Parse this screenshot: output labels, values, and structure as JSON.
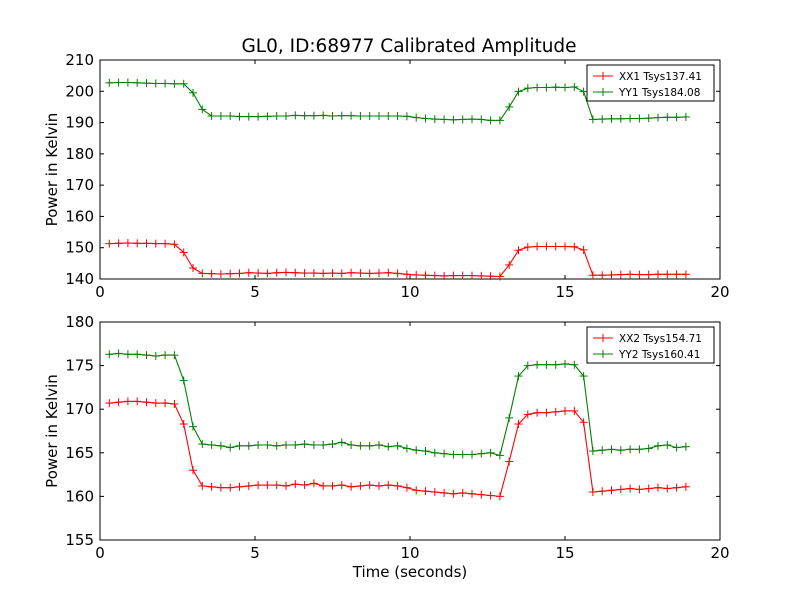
{
  "title": "GL0, ID:68977 Calibrated Amplitude",
  "colors": {
    "xx": "#ff0000",
    "yy": "#008000",
    "axis": "#000000"
  },
  "chart_data": [
    {
      "type": "line",
      "ylabel": "Power in Kelvin",
      "xlabel": "",
      "xlim": [
        0,
        20
      ],
      "ylim": [
        140,
        210
      ],
      "xticks": [
        0,
        5,
        10,
        15,
        20
      ],
      "yticks": [
        140,
        150,
        160,
        170,
        180,
        190,
        200,
        210
      ],
      "legend_position": "top-right",
      "x": [
        0.3,
        0.6,
        0.9,
        1.2,
        1.5,
        1.8,
        2.1,
        2.4,
        2.7,
        3.0,
        3.3,
        3.6,
        3.9,
        4.2,
        4.5,
        4.8,
        5.1,
        5.4,
        5.7,
        6.0,
        6.3,
        6.6,
        6.9,
        7.2,
        7.5,
        7.8,
        8.1,
        8.4,
        8.7,
        9.0,
        9.3,
        9.6,
        9.9,
        10.2,
        10.5,
        10.8,
        11.1,
        11.4,
        11.7,
        12.0,
        12.3,
        12.6,
        12.9,
        13.2,
        13.5,
        13.8,
        14.1,
        14.4,
        14.7,
        15.0,
        15.3,
        15.6,
        15.9,
        16.2,
        16.5,
        16.8,
        17.1,
        17.4,
        17.7,
        18.0,
        18.3,
        18.6,
        18.9
      ],
      "series": [
        {
          "name": "XX1 Tsys137.41",
          "color": "#ff0000",
          "values": [
            151.3,
            151.4,
            151.5,
            151.4,
            151.4,
            151.3,
            151.3,
            151.1,
            148.5,
            143.5,
            141.8,
            141.7,
            141.6,
            141.7,
            141.8,
            142.0,
            141.9,
            141.8,
            142.0,
            142.1,
            142.0,
            141.9,
            141.9,
            141.8,
            141.9,
            141.8,
            142.0,
            141.9,
            141.8,
            141.9,
            142.0,
            141.8,
            141.5,
            141.3,
            141.2,
            141.1,
            141.0,
            141.1,
            141.1,
            141.1,
            141.0,
            140.9,
            140.8,
            144.5,
            149.2,
            150.2,
            150.4,
            150.4,
            150.4,
            150.4,
            150.3,
            149.3,
            141.2,
            141.2,
            141.3,
            141.4,
            141.5,
            141.4,
            141.4,
            141.5,
            141.5,
            141.5,
            141.5
          ]
        },
        {
          "name": "YY1 Tsys184.08",
          "color": "#008000",
          "values": [
            202.7,
            202.8,
            202.8,
            202.7,
            202.6,
            202.5,
            202.5,
            202.4,
            202.4,
            199.5,
            194.2,
            192.1,
            192.1,
            192.1,
            191.9,
            191.9,
            191.9,
            192.0,
            192.1,
            192.1,
            192.3,
            192.2,
            192.2,
            192.3,
            192.1,
            192.2,
            192.2,
            192.1,
            192.1,
            192.1,
            192.1,
            192.1,
            192.0,
            191.6,
            191.3,
            191.1,
            191.0,
            190.9,
            191.0,
            191.1,
            191.0,
            190.7,
            190.7,
            195.0,
            199.9,
            201.0,
            201.2,
            201.2,
            201.3,
            201.2,
            201.4,
            199.9,
            191.0,
            191.1,
            191.2,
            191.2,
            191.3,
            191.3,
            191.4,
            191.6,
            191.7,
            191.7,
            191.8
          ]
        }
      ]
    },
    {
      "type": "line",
      "ylabel": "Power in Kelvin",
      "xlabel": "Time (seconds)",
      "xlim": [
        0,
        20
      ],
      "ylim": [
        155,
        180
      ],
      "xticks": [
        0,
        5,
        10,
        15,
        20
      ],
      "yticks": [
        155,
        160,
        165,
        170,
        175,
        180
      ],
      "legend_position": "top-right",
      "x": [
        0.3,
        0.6,
        0.9,
        1.2,
        1.5,
        1.8,
        2.1,
        2.4,
        2.7,
        3.0,
        3.3,
        3.6,
        3.9,
        4.2,
        4.5,
        4.8,
        5.1,
        5.4,
        5.7,
        6.0,
        6.3,
        6.6,
        6.9,
        7.2,
        7.5,
        7.8,
        8.1,
        8.4,
        8.7,
        9.0,
        9.3,
        9.6,
        9.9,
        10.2,
        10.5,
        10.8,
        11.1,
        11.4,
        11.7,
        12.0,
        12.3,
        12.6,
        12.9,
        13.2,
        13.5,
        13.8,
        14.1,
        14.4,
        14.7,
        15.0,
        15.3,
        15.6,
        15.9,
        16.2,
        16.5,
        16.8,
        17.1,
        17.4,
        17.7,
        18.0,
        18.3,
        18.6,
        18.9
      ],
      "series": [
        {
          "name": "XX2 Tsys154.71",
          "color": "#ff0000",
          "values": [
            170.7,
            170.8,
            170.9,
            170.9,
            170.8,
            170.7,
            170.7,
            170.6,
            168.3,
            163.0,
            161.2,
            161.1,
            161.0,
            161.0,
            161.1,
            161.2,
            161.3,
            161.3,
            161.3,
            161.2,
            161.4,
            161.3,
            161.5,
            161.2,
            161.2,
            161.3,
            161.1,
            161.2,
            161.3,
            161.2,
            161.3,
            161.2,
            161.0,
            160.7,
            160.6,
            160.5,
            160.4,
            160.3,
            160.4,
            160.3,
            160.2,
            160.1,
            160.0,
            164.0,
            168.3,
            169.4,
            169.6,
            169.6,
            169.7,
            169.8,
            169.8,
            168.5,
            160.5,
            160.6,
            160.7,
            160.8,
            160.9,
            160.8,
            160.9,
            161.0,
            160.9,
            161.0,
            161.1
          ]
        },
        {
          "name": "YY2 Tsys160.41",
          "color": "#008000",
          "values": [
            176.3,
            176.4,
            176.3,
            176.3,
            176.2,
            176.1,
            176.2,
            176.2,
            173.3,
            168.0,
            166.0,
            165.9,
            165.8,
            165.6,
            165.8,
            165.8,
            165.9,
            165.9,
            165.8,
            165.9,
            165.9,
            166.0,
            165.9,
            165.9,
            166.0,
            166.2,
            165.9,
            165.8,
            165.8,
            165.9,
            165.7,
            165.8,
            165.5,
            165.3,
            165.2,
            165.0,
            164.9,
            164.8,
            164.8,
            164.8,
            164.9,
            165.0,
            164.7,
            169.0,
            173.8,
            175.0,
            175.1,
            175.1,
            175.1,
            175.2,
            175.1,
            173.8,
            165.2,
            165.3,
            165.4,
            165.3,
            165.4,
            165.4,
            165.5,
            165.8,
            165.9,
            165.6,
            165.7
          ]
        }
      ]
    }
  ]
}
